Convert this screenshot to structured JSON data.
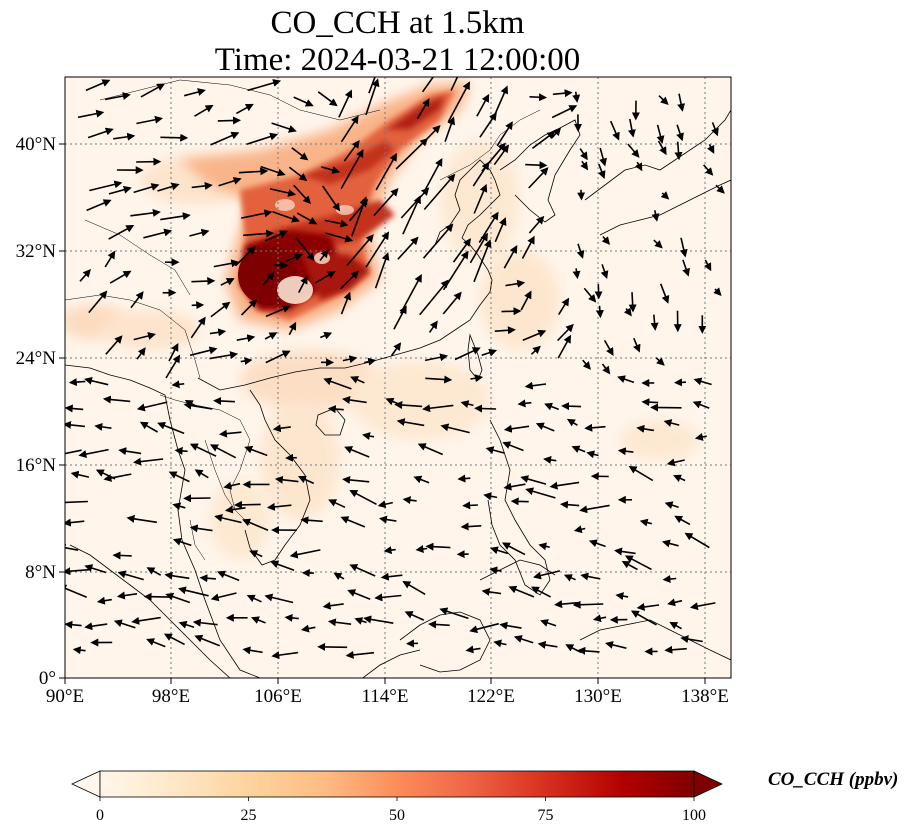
{
  "title": {
    "line1": "CO_CCH at 1.5km",
    "line2": "Time: 2024-03-21 12:00:00"
  },
  "map": {
    "lon_range": [
      90,
      140
    ],
    "lat_range": [
      0,
      45
    ],
    "lon_ticks": [
      "90°E",
      "98°E",
      "106°E",
      "114°E",
      "122°E",
      "130°E",
      "138°E"
    ],
    "lat_ticks": [
      "0°",
      "8°N",
      "16°N",
      "24°N",
      "32°N",
      "40°N"
    ],
    "gridlines": "dotted",
    "background_color": "#fff5eb",
    "features": [
      "coastlines",
      "country borders",
      "wind vectors",
      "CO concentration field"
    ]
  },
  "colorbar": {
    "label": "CO_CCH (ppbv)",
    "ticks": [
      "0",
      "25",
      "50",
      "75",
      "100"
    ],
    "range": [
      0,
      100
    ],
    "extend": "both",
    "colormap": "OrRd",
    "colors": [
      "#fff7ec",
      "#fee8c8",
      "#fdd49e",
      "#fdbb84",
      "#fc8d59",
      "#ef6548",
      "#d7301f",
      "#b30000",
      "#7f0000"
    ]
  },
  "plume": {
    "description_color_core": "#7f0000",
    "description_color_mid": "#c4331b",
    "description_color_edge": "#f9b489"
  }
}
